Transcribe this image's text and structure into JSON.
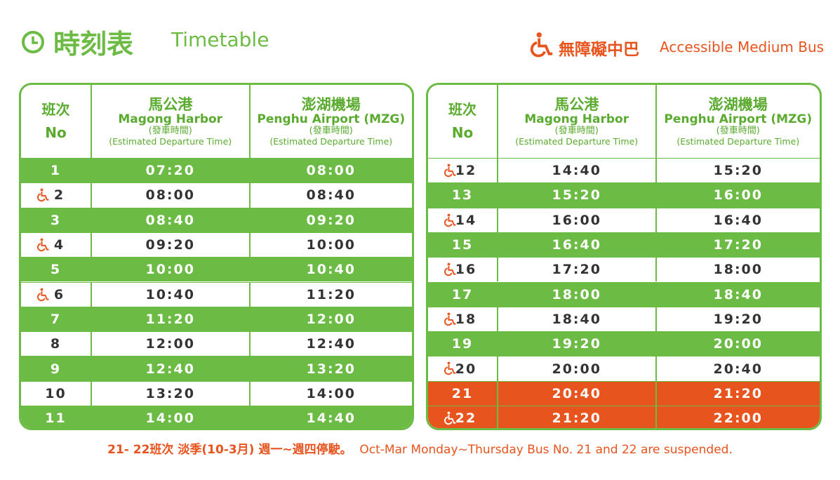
{
  "header": {
    "title_zh": "時刻表",
    "title_en": "Timetable",
    "badge_zh": "無障礙中巴",
    "badge_en": "Accessible Medium Bus"
  },
  "colors": {
    "green": "#6cbb45",
    "orange": "#e8541e",
    "white": "#ffffff"
  },
  "tables": [
    {
      "columns": [
        {
          "lines": [
            "班次",
            "No"
          ]
        },
        {
          "lines": [
            "馬公港",
            "Magong Harbor",
            "(發車時間)",
            "(Estimated Departure Time)"
          ]
        },
        {
          "lines": [
            "澎湖機場",
            "Penghu Airport (MZG)",
            "(發車時間)",
            "(Estimated Departure Time)"
          ]
        }
      ],
      "rows": [
        {
          "no": 1,
          "harbor": "07:20",
          "airport": "08:00",
          "accessible": false,
          "fill": "green"
        },
        {
          "no": 2,
          "harbor": "08:00",
          "airport": "08:40",
          "accessible": true,
          "fill": "white"
        },
        {
          "no": 3,
          "harbor": "08:40",
          "airport": "09:20",
          "accessible": false,
          "fill": "green"
        },
        {
          "no": 4,
          "harbor": "09:20",
          "airport": "10:00",
          "accessible": true,
          "fill": "white"
        },
        {
          "no": 5,
          "harbor": "10:00",
          "airport": "10:40",
          "accessible": false,
          "fill": "green"
        },
        {
          "no": 6,
          "harbor": "10:40",
          "airport": "11:20",
          "accessible": true,
          "fill": "white"
        },
        {
          "no": 7,
          "harbor": "11:20",
          "airport": "12:00",
          "accessible": false,
          "fill": "green"
        },
        {
          "no": 8,
          "harbor": "12:00",
          "airport": "12:40",
          "accessible": false,
          "fill": "white"
        },
        {
          "no": 9,
          "harbor": "12:40",
          "airport": "13:20",
          "accessible": false,
          "fill": "green"
        },
        {
          "no": 10,
          "harbor": "13:20",
          "airport": "14:00",
          "accessible": false,
          "fill": "white"
        },
        {
          "no": 11,
          "harbor": "14:00",
          "airport": "14:40",
          "accessible": false,
          "fill": "green"
        }
      ]
    },
    {
      "columns": [
        {
          "lines": [
            "班次",
            "No"
          ]
        },
        {
          "lines": [
            "馬公港",
            "Magong Harbor",
            "(發車時間)",
            "(Estimated Departure Time)"
          ]
        },
        {
          "lines": [
            "澎湖機場",
            "Penghu Airport (MZG)",
            "(發車時間)",
            "(Estimated Departure Time)"
          ]
        }
      ],
      "rows": [
        {
          "no": 12,
          "harbor": "14:40",
          "airport": "15:20",
          "accessible": true,
          "fill": "white"
        },
        {
          "no": 13,
          "harbor": "15:20",
          "airport": "16:00",
          "accessible": false,
          "fill": "green"
        },
        {
          "no": 14,
          "harbor": "16:00",
          "airport": "16:40",
          "accessible": true,
          "fill": "white"
        },
        {
          "no": 15,
          "harbor": "16:40",
          "airport": "17:20",
          "accessible": false,
          "fill": "green"
        },
        {
          "no": 16,
          "harbor": "17:20",
          "airport": "18:00",
          "accessible": true,
          "fill": "white"
        },
        {
          "no": 17,
          "harbor": "18:00",
          "airport": "18:40",
          "accessible": false,
          "fill": "green"
        },
        {
          "no": 18,
          "harbor": "18:40",
          "airport": "19:20",
          "accessible": true,
          "fill": "white"
        },
        {
          "no": 19,
          "harbor": "19:20",
          "airport": "20:00",
          "accessible": false,
          "fill": "green"
        },
        {
          "no": 20,
          "harbor": "20:00",
          "airport": "20:40",
          "accessible": true,
          "fill": "white"
        },
        {
          "no": 21,
          "harbor": "20:40",
          "airport": "21:20",
          "accessible": false,
          "fill": "orange"
        },
        {
          "no": 22,
          "harbor": "21:20",
          "airport": "22:00",
          "accessible": true,
          "fill": "orange"
        }
      ]
    }
  ],
  "note": {
    "zh": "21- 22班次 淡季(10-3月) 週一~週四停駛。",
    "en": "Oct-Mar Monday~Thursday Bus No. 21 and 22 are suspended."
  }
}
